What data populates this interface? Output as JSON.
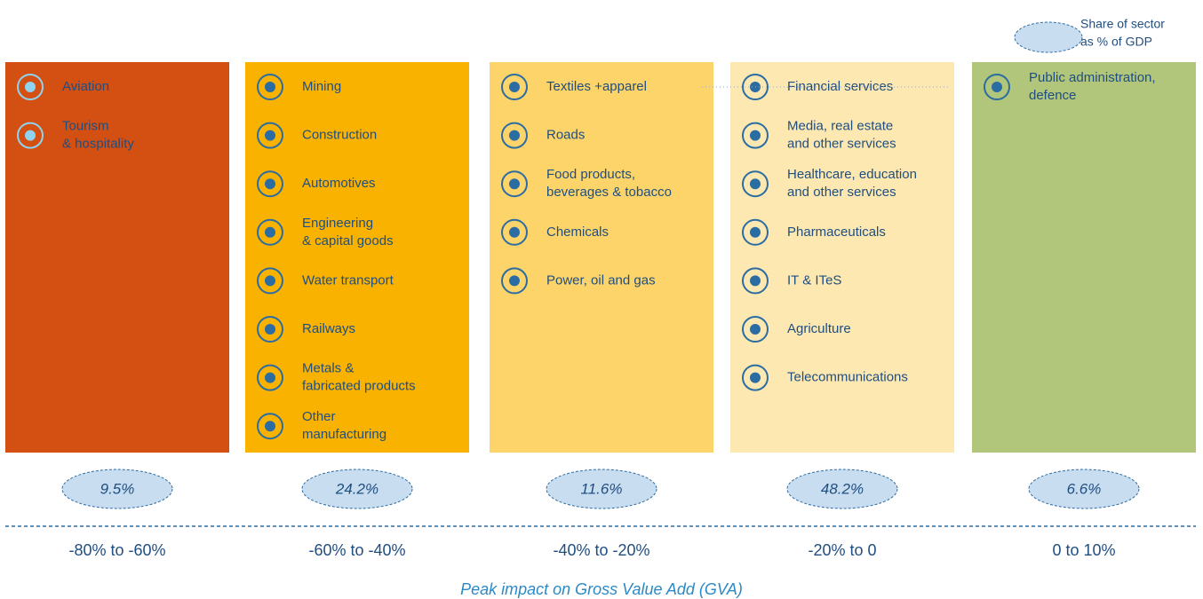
{
  "legend": {
    "lines": [
      "Share of sector",
      "as % of GDP"
    ]
  },
  "columns": [
    {
      "sectors": [
        [
          "Aviation"
        ],
        [
          "Tourism",
          "& hospitality"
        ]
      ],
      "share": "9.5%",
      "range": "-80% to -60%"
    },
    {
      "sectors": [
        [
          "Mining"
        ],
        [
          "Construction"
        ],
        [
          "Automotives"
        ],
        [
          "Engineering",
          "& capital goods"
        ],
        [
          "Water transport"
        ],
        [
          "Railways"
        ],
        [
          "Metals &",
          "fabricated products"
        ],
        [
          "Other",
          "manufacturing"
        ]
      ],
      "share": "24.2%",
      "range": "-60% to -40%"
    },
    {
      "sectors": [
        [
          "Textiles +apparel"
        ],
        [
          "Roads"
        ],
        [
          "Food products,",
          "beverages & tobacco"
        ],
        [
          "Chemicals"
        ],
        [
          "Power, oil and gas"
        ]
      ],
      "share": "11.6%",
      "range": "-40% to -20%"
    },
    {
      "sectors": [
        [
          "Financial services"
        ],
        [
          "Media, real estate",
          "and other services"
        ],
        [
          "Healthcare, education",
          "and other services"
        ],
        [
          "Pharmaceuticals"
        ],
        [
          "IT & ITeS"
        ],
        [
          "Agriculture"
        ],
        [
          "Telecommunications"
        ]
      ],
      "share": "48.2%",
      "range": "-20% to 0"
    },
    {
      "sectors": [
        [
          "Public administration,",
          "defence"
        ]
      ],
      "share": "6.6%",
      "range": "0 to 10%"
    }
  ],
  "footer": "Peak impact on Gross Value Add (GVA)"
}
